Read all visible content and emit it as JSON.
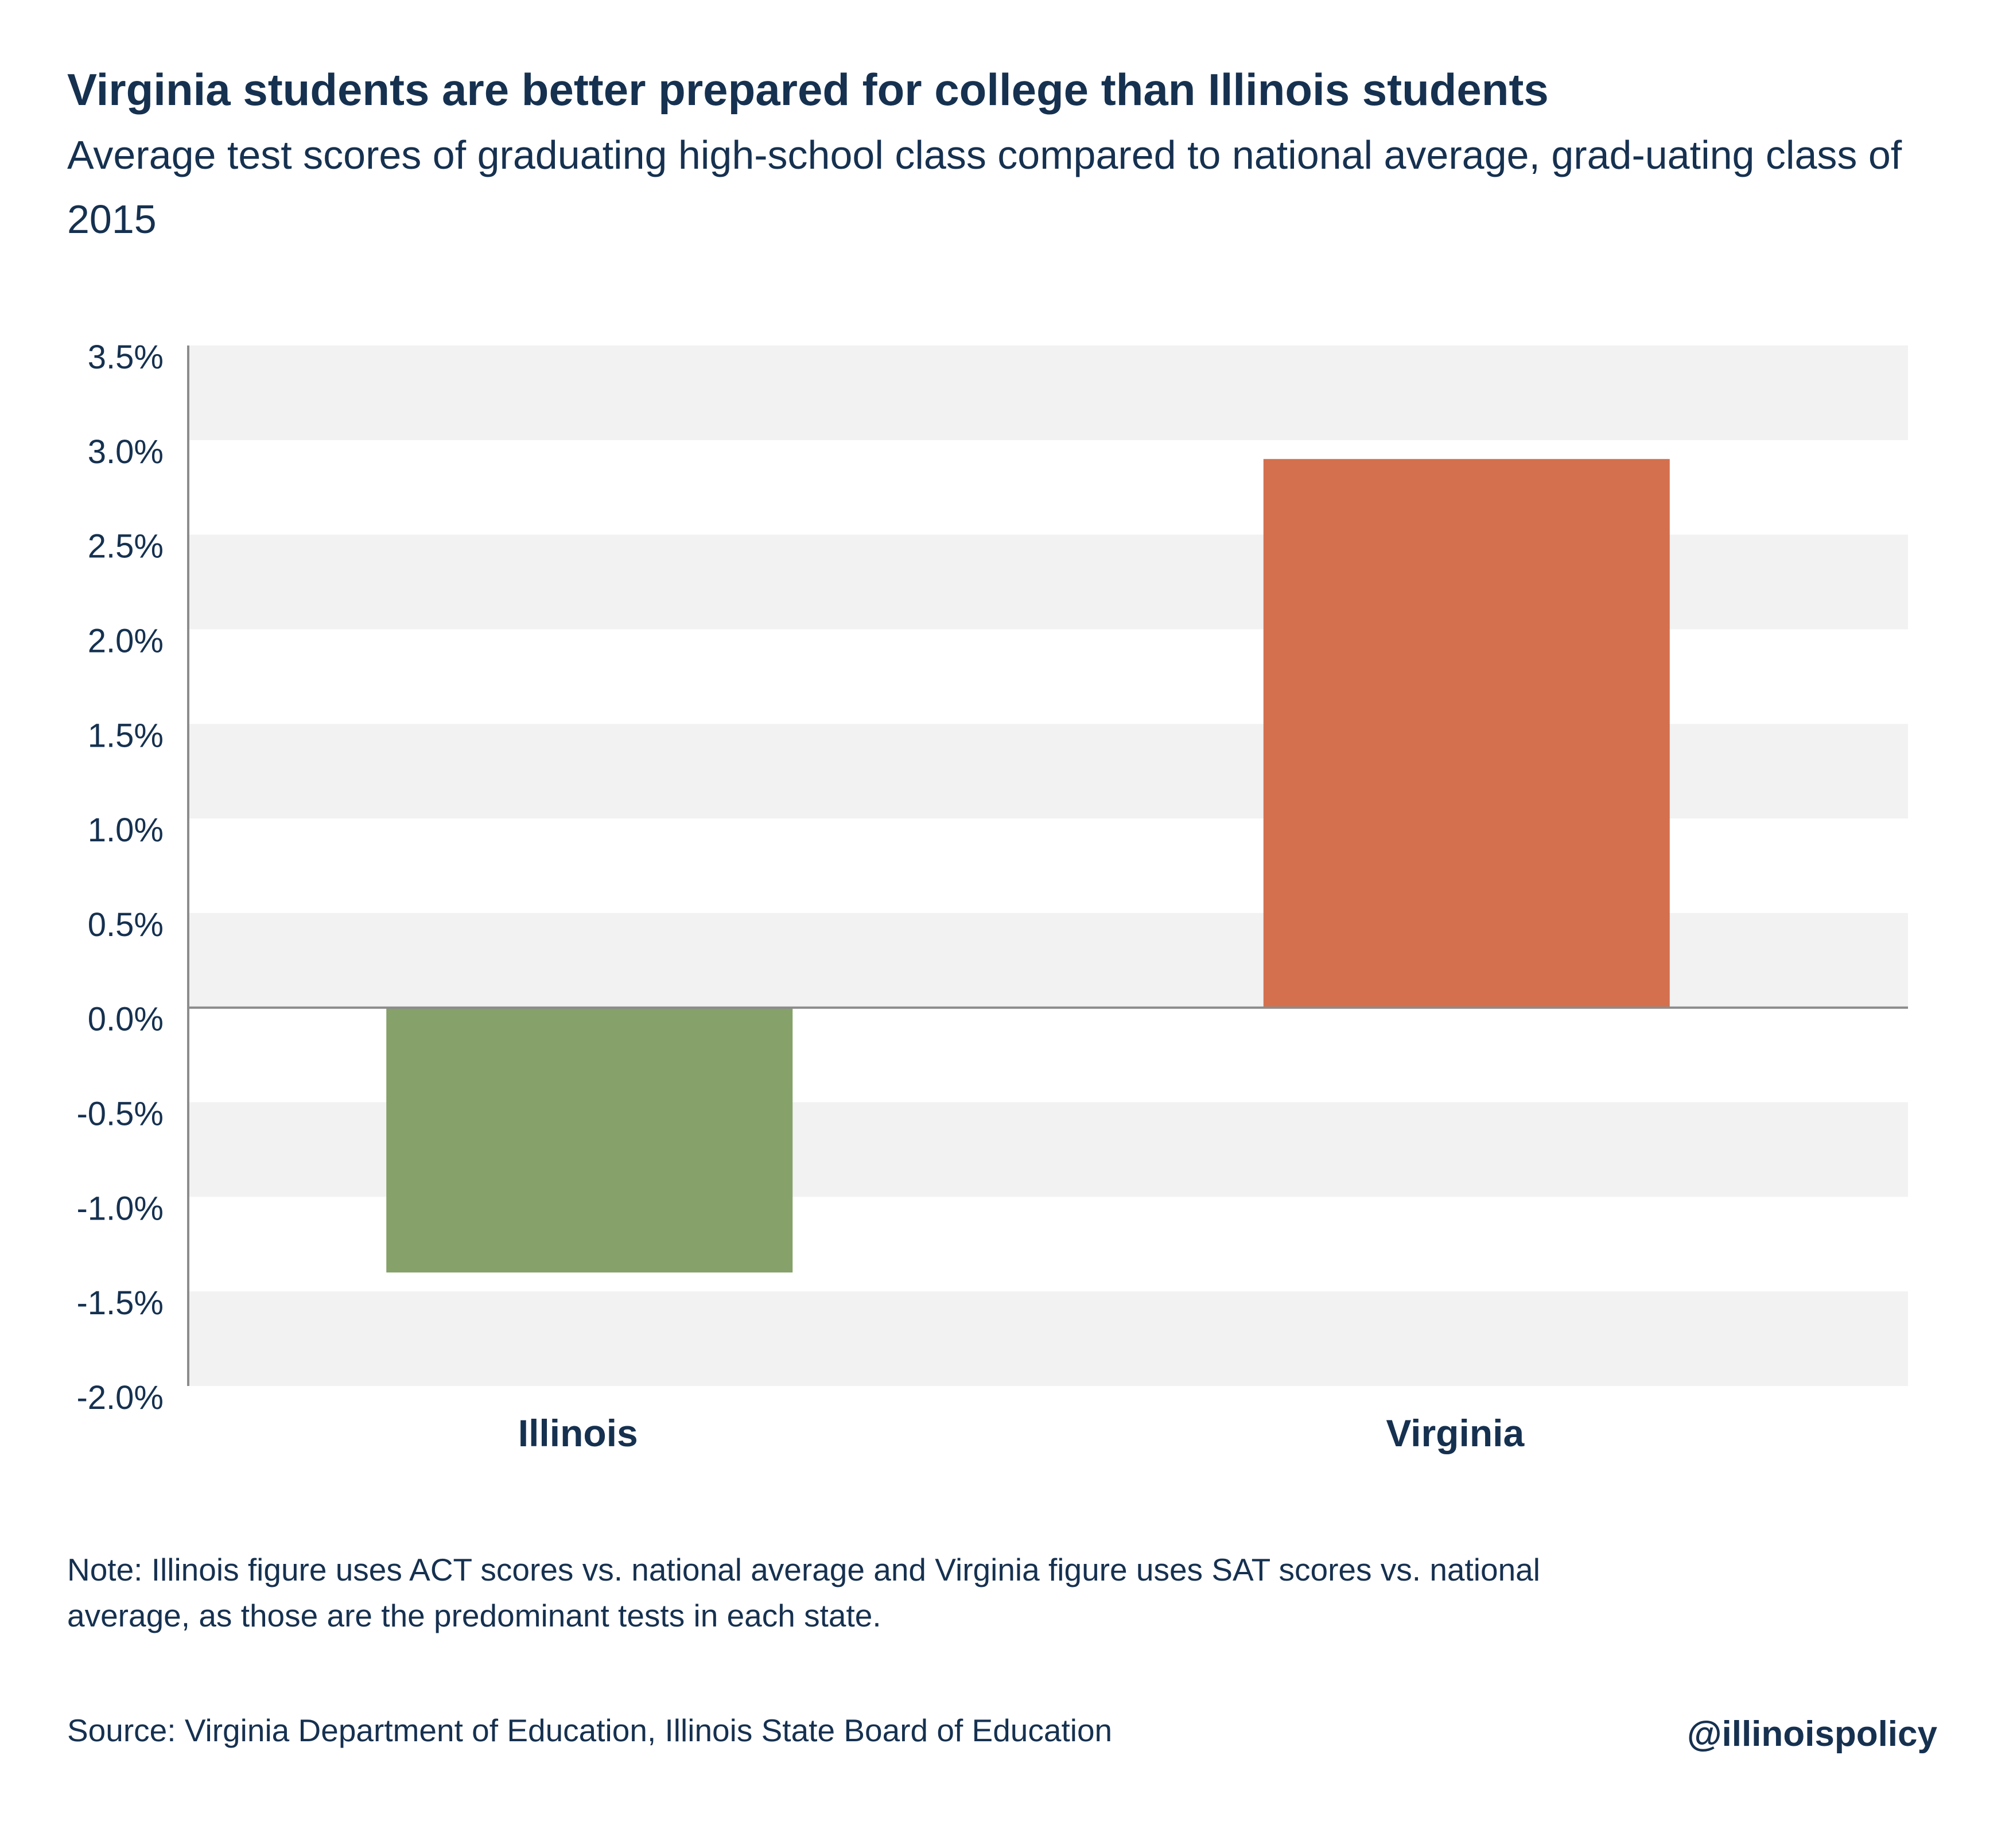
{
  "header": {
    "title": "Virginia students are better prepared for college than Illinois students",
    "subtitle": "Average test scores of graduating high-school class compared to national average, grad-uating class of 2015"
  },
  "chart_data": {
    "type": "bar",
    "categories": [
      "Illinois",
      "Virginia"
    ],
    "values": [
      -1.4,
      2.9
    ],
    "colors": [
      "#86a169",
      "#d4704e"
    ],
    "title": "Virginia students are better prepared for college than Illinois students",
    "subtitle": "Average test scores of graduating high-school class compared to national average, grad-uating class of 2015",
    "ylim": [
      -2.0,
      3.5
    ],
    "y_ticks": [
      3.5,
      3.0,
      2.5,
      2.0,
      1.5,
      1.0,
      0.5,
      0.0,
      -0.5,
      -1.0,
      -1.5,
      -2.0
    ],
    "y_tick_labels": [
      "3.5%",
      "3.0%",
      "2.5%",
      "2.0%",
      "1.5%",
      "1.0%",
      "0.5%",
      "0.0%",
      "-0.5%",
      "-1.0%",
      "-1.5%",
      "-2.0%"
    ],
    "grid": "alternating horizontal bands",
    "band_color": "#f2f2f2",
    "text_color": "#163150"
  },
  "footer": {
    "note": "Note: Illinois figure uses ACT scores vs. national average and Virginia figure uses SAT scores vs. national average, as those are the predominant tests in each state.",
    "source": "Source:  Virginia Department of Education, Illinois State Board of Education",
    "handle": "@illinoispolicy"
  }
}
